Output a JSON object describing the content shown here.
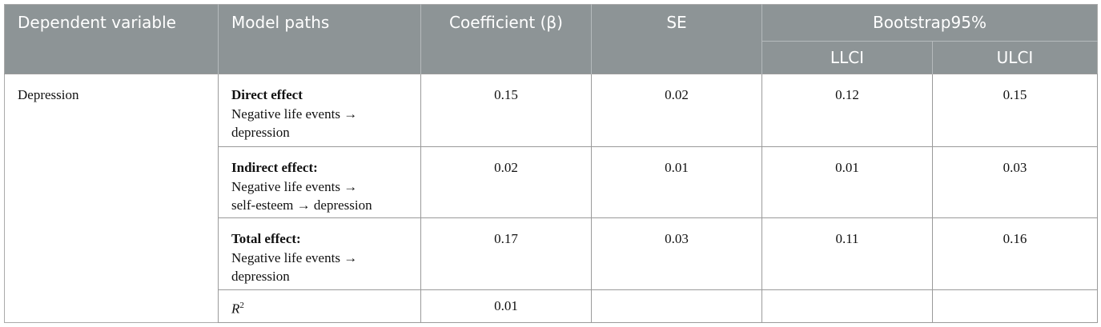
{
  "table": {
    "header": {
      "dependent": "Dependent variable",
      "paths": "Model paths",
      "coefficient": "Coefficient (β)",
      "se": "SE",
      "bootstrap": "Bootstrap95%",
      "llci": "LLCI",
      "ulci": "ULCI"
    },
    "dependent": "Depression",
    "rows": [
      {
        "label": "Direct effect",
        "lines": [
          "Negative life events →",
          "depression"
        ],
        "coefficient": 0.15,
        "se": 0.02,
        "llci": 0.12,
        "ulci": 0.15
      },
      {
        "label": "Indirect effect:",
        "lines": [
          "Negative life events →",
          "self-esteem →  depression"
        ],
        "coefficient": 0.02,
        "se": 0.01,
        "llci": 0.01,
        "ulci": 0.03
      },
      {
        "label": "Total effect:",
        "lines": [
          "Negative life events →",
          "depression"
        ],
        "coefficient": 0.17,
        "se": 0.03,
        "llci": 0.11,
        "ulci": 0.16
      }
    ],
    "r2": {
      "symbol": "R",
      "superscript": "2",
      "coefficient": 0.01
    }
  }
}
